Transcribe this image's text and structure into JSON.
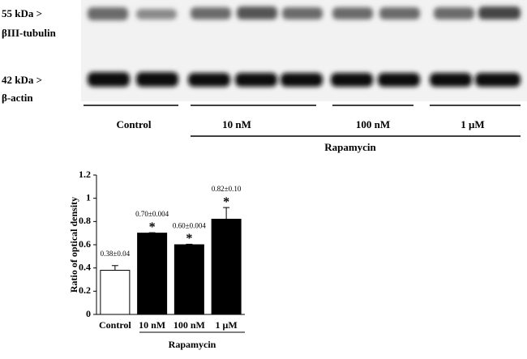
{
  "blot": {
    "markers": [
      "55 kDa >",
      "42 kDa >"
    ],
    "proteins": [
      "βIII-tubulin",
      "β-actin"
    ],
    "lanes": [
      "Control",
      "10 nM",
      "100 nM",
      "1 μM"
    ],
    "treatment": "Rapamycin"
  },
  "chart_data": {
    "type": "bar",
    "ylabel": "Ratio of optical density",
    "categories": [
      "Control",
      "10 nM",
      "100 nM",
      "1 μM"
    ],
    "group_label": "Rapamycin",
    "values": [
      0.38,
      0.7,
      0.6,
      0.82
    ],
    "errors": [
      0.04,
      0.004,
      0.004,
      0.1
    ],
    "value_labels": [
      "0.38±0.04",
      "0.70±0.004",
      "0.60±0.004",
      "0.82±0.10"
    ],
    "markers": [
      null,
      "*",
      "*",
      "*"
    ],
    "colors": [
      "#ffffff",
      "#000000",
      "#000000",
      "#000000"
    ],
    "ylim": [
      0,
      1.2
    ],
    "yticks": [
      0,
      0.2,
      0.4,
      0.6,
      0.8,
      1,
      1.2
    ]
  }
}
